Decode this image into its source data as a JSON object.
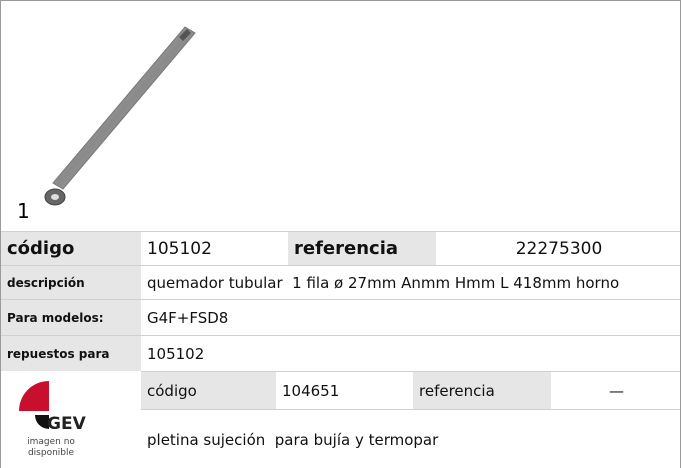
{
  "image": {
    "label": "1"
  },
  "table": {
    "rows": [
      [
        "código",
        "105102",
        "referencia",
        "22275300"
      ],
      [
        "descripción",
        "quemador tubular  1 fila ø 27mm Anmm Hmm L 418mm horno"
      ],
      [
        "Para modelos:",
        "G4F+FSD8"
      ],
      [
        "repuestos para",
        "105102"
      ]
    ]
  },
  "spare": {
    "logo": "GEV",
    "logo_caption": [
      "imagen no",
      "disponible"
    ],
    "rows": [
      [
        "código",
        "104651",
        "referencia",
        "—"
      ]
    ],
    "description": "pletina sujeción  para bujía y termopar"
  }
}
